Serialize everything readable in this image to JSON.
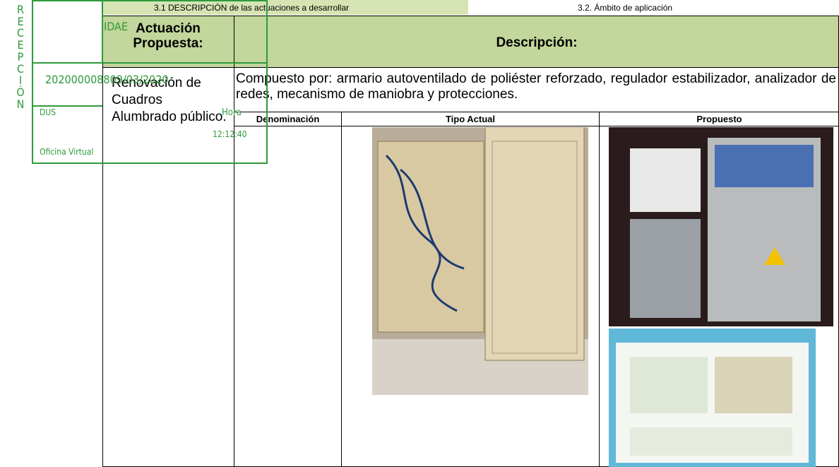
{
  "header": {
    "section_left": "3.1 DESCRIPCIÓN de las actuaciones a desarrollar",
    "section_right": "3.2. Ámbito de aplicación"
  },
  "stamp": {
    "vertical": "RECEPCIÓN",
    "entity": "IDAE",
    "number": "202000008809/03/2020",
    "office_code": "DUS",
    "office": "Oficina Virtual",
    "time_label": "Hora",
    "time": "12:12:40"
  },
  "table": {
    "headers": [
      "Actuación Propuesta:",
      "Descripción:"
    ],
    "action": "Renovación de Cuadros Alumbrado público.",
    "description": "Compuesto por: armario autoventilado de poliéster reforzado, regulador estabilizador, analizador de redes, mecanismo de maniobra y protecciones.",
    "sub_headers": [
      "Denominación",
      "Tipo Actual",
      "Propuesto"
    ]
  }
}
